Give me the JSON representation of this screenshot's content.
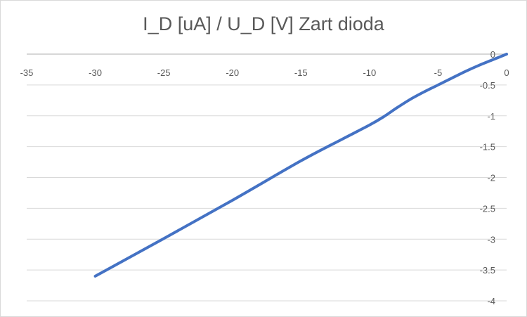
{
  "chart_data": {
    "type": "line",
    "title": "I_D [uA] / U_D [V] Zart dioda",
    "xlabel": "",
    "ylabel": "",
    "xlim": [
      -35,
      0
    ],
    "ylim": [
      -4,
      0
    ],
    "x_ticks": [
      "-35",
      "-30",
      "-25",
      "-20",
      "-15",
      "-10",
      "-5",
      "0"
    ],
    "x_tick_values": [
      -35,
      -30,
      -25,
      -20,
      -15,
      -10,
      -5,
      0
    ],
    "y_ticks": [
      "0",
      "-0.5",
      "-1",
      "-1.5",
      "-2",
      "-2.5",
      "-3",
      "-3.5",
      "-4"
    ],
    "y_tick_values": [
      0,
      -0.5,
      -1,
      -1.5,
      -2,
      -2.5,
      -3,
      -3.5,
      -4
    ],
    "grid": true,
    "legend": false,
    "series": [
      {
        "color": "#4472c4",
        "x": [
          0,
          -1,
          -2,
          -3,
          -4,
          -5,
          -6,
          -7,
          -8,
          -9,
          -10,
          -12,
          -15,
          -20,
          -25,
          -30
        ],
        "y": [
          0,
          -0.09,
          -0.18,
          -0.28,
          -0.39,
          -0.5,
          -0.61,
          -0.73,
          -0.87,
          -1.02,
          -1.15,
          -1.38,
          -1.73,
          -2.37,
          -2.99,
          -3.6
        ]
      }
    ]
  }
}
